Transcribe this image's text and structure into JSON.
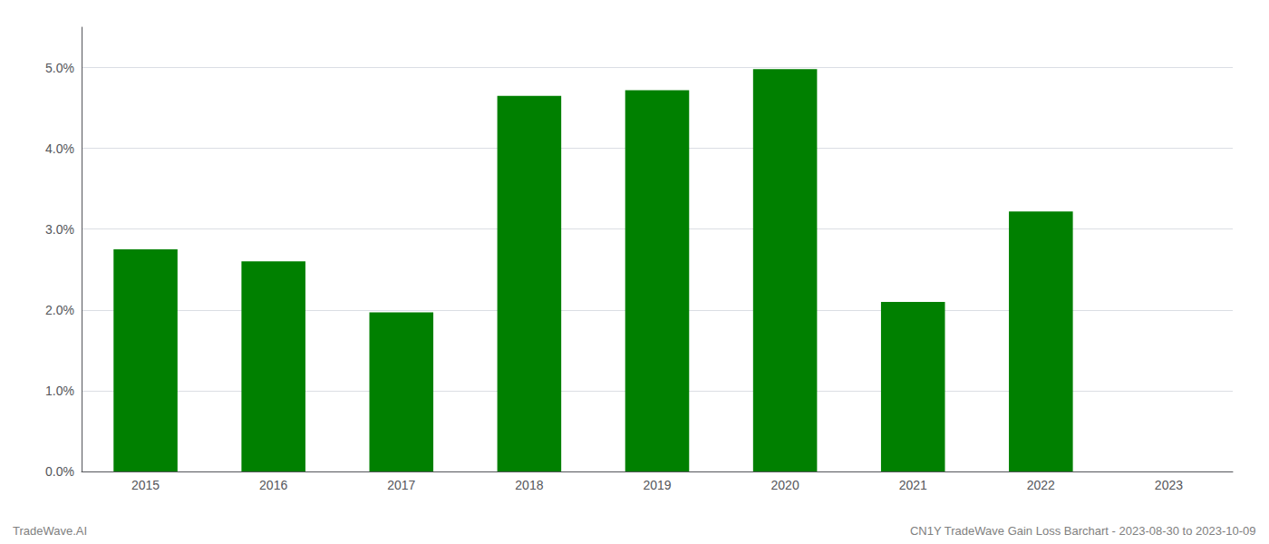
{
  "chart_data": {
    "type": "bar",
    "categories": [
      "2015",
      "2016",
      "2017",
      "2018",
      "2019",
      "2020",
      "2021",
      "2022",
      "2023"
    ],
    "values": [
      0.0275,
      0.026,
      0.0197,
      0.0465,
      0.0472,
      0.0498,
      0.021,
      0.0322,
      0.0
    ],
    "color": "#008000",
    "ylim": [
      0.0,
      0.055
    ],
    "yticks": [
      {
        "value": 0.0,
        "label": "0.0%"
      },
      {
        "value": 0.01,
        "label": "1.0%"
      },
      {
        "value": 0.02,
        "label": "2.0%"
      },
      {
        "value": 0.03,
        "label": "3.0%"
      },
      {
        "value": 0.04,
        "label": "4.0%"
      },
      {
        "value": 0.05,
        "label": "5.0%"
      }
    ],
    "grid": true,
    "annotations": [
      "TradeWave.AI",
      "CN1Y TradeWave Gain Loss Barchart - 2023-08-30 to 2023-10-09"
    ]
  }
}
